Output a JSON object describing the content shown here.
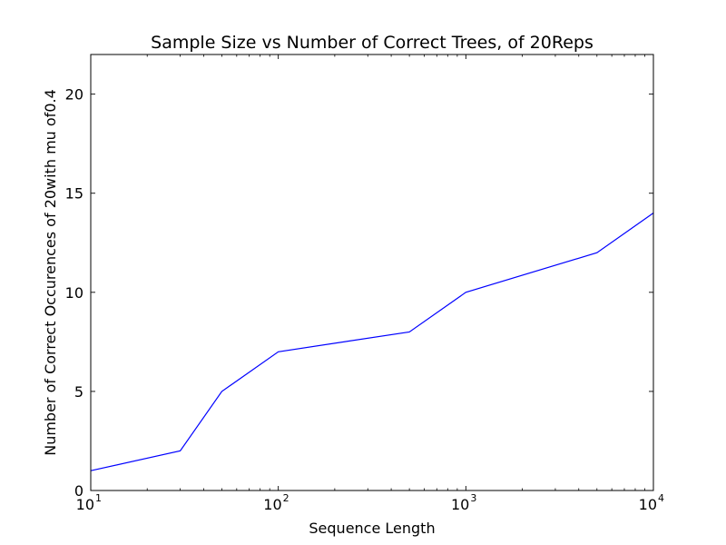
{
  "chart_data": {
    "type": "line",
    "title": "Sample Size vs Number of Correct Trees, of 20Reps",
    "xlabel": "Sequence Length",
    "ylabel": "Number of Correct Occurences of 20with mu of0.4",
    "xscale": "log",
    "xlim": [
      10,
      10000
    ],
    "ylim": [
      0,
      22
    ],
    "x_ticks": [
      {
        "value": 10,
        "base": "10",
        "exp": "1"
      },
      {
        "value": 100,
        "base": "10",
        "exp": "2"
      },
      {
        "value": 1000,
        "base": "10",
        "exp": "3"
      },
      {
        "value": 10000,
        "base": "10",
        "exp": "4"
      }
    ],
    "y_ticks": [
      {
        "value": 0,
        "label": "0"
      },
      {
        "value": 5,
        "label": "5"
      },
      {
        "value": 10,
        "label": "10"
      },
      {
        "value": 15,
        "label": "15"
      },
      {
        "value": 20,
        "label": "20"
      }
    ],
    "grid": false,
    "series": [
      {
        "color": "#0000ff",
        "x": [
          10,
          30,
          50,
          100,
          500,
          1000,
          5000,
          10000
        ],
        "y": [
          1,
          2,
          5,
          7,
          8,
          10,
          12,
          14
        ]
      }
    ]
  }
}
